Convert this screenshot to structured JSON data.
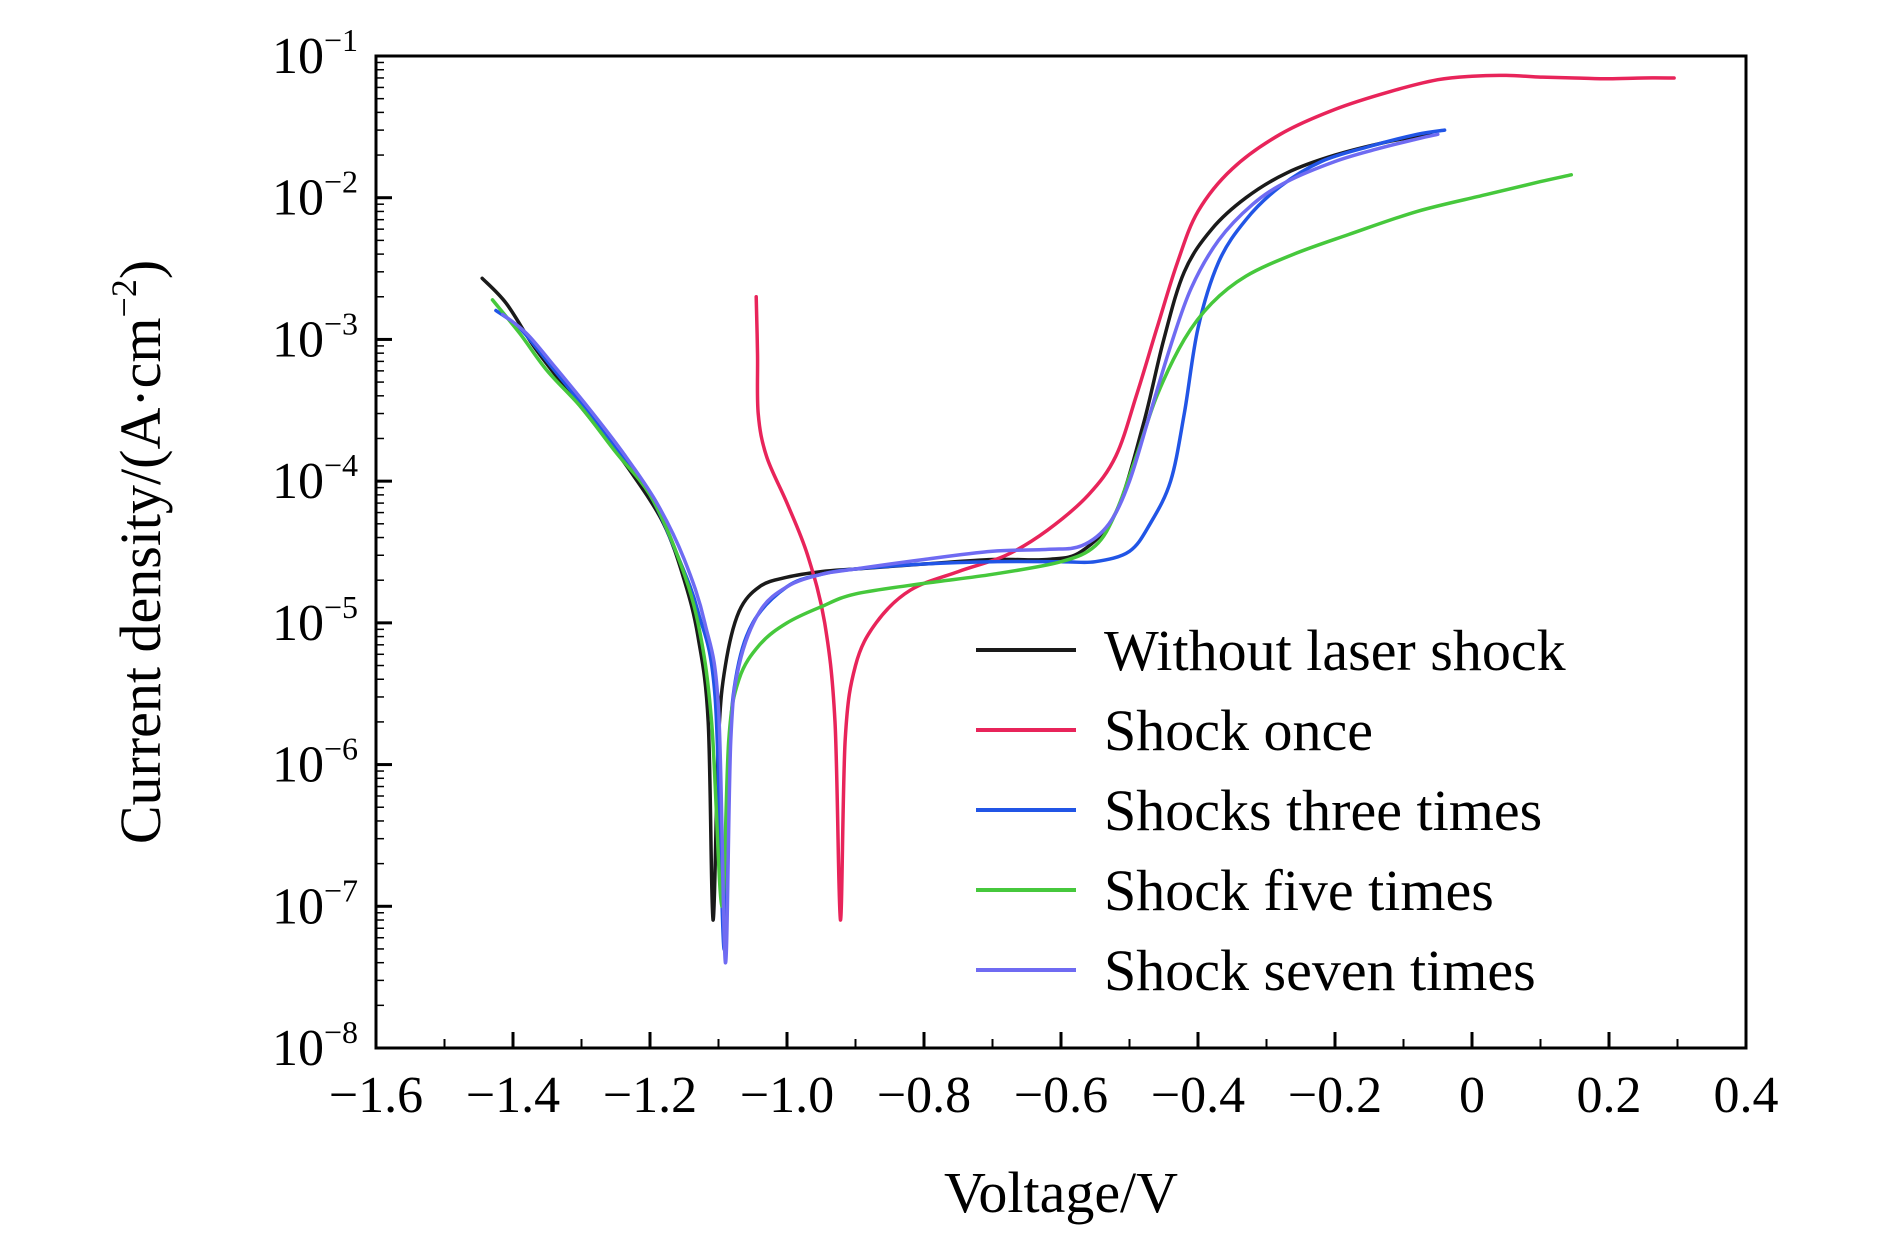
{
  "chart_data": {
    "type": "line",
    "title": "",
    "xlabel": "Voltage/V",
    "ylabel": {
      "prefix": "Current density/(A·cm",
      "exponent": "−2",
      "suffix": ")"
    },
    "xlim": [
      -1.6,
      0.4
    ],
    "ylim": [
      1e-08,
      0.1
    ],
    "yscale": "log",
    "grid": false,
    "legend_position": "bottom-right",
    "x_ticks": [
      {
        "value": -1.6,
        "label": "−1.6"
      },
      {
        "value": -1.4,
        "label": "−1.4"
      },
      {
        "value": -1.2,
        "label": "−1.2"
      },
      {
        "value": -1.0,
        "label": "−1.0"
      },
      {
        "value": -0.8,
        "label": "−0.8"
      },
      {
        "value": -0.6,
        "label": "−0.6"
      },
      {
        "value": -0.4,
        "label": "−0.4"
      },
      {
        "value": -0.2,
        "label": "−0.2"
      },
      {
        "value": 0,
        "label": "0"
      },
      {
        "value": 0.2,
        "label": "0.2"
      },
      {
        "value": 0.4,
        "label": "0.4"
      }
    ],
    "y_ticks": [
      {
        "value": 0.1,
        "base": "10",
        "exp": "−1"
      },
      {
        "value": 0.01,
        "base": "10",
        "exp": "−2"
      },
      {
        "value": 0.001,
        "base": "10",
        "exp": "−3"
      },
      {
        "value": 0.0001,
        "base": "10",
        "exp": "−4"
      },
      {
        "value": 1e-05,
        "base": "10",
        "exp": "−5"
      },
      {
        "value": 1e-06,
        "base": "10",
        "exp": "−6"
      },
      {
        "value": 1e-07,
        "base": "10",
        "exp": "−7"
      },
      {
        "value": 1e-08,
        "base": "10",
        "exp": "−8"
      }
    ],
    "series": [
      {
        "name": "Without laser shock",
        "color": "#1a1a1a",
        "points": [
          [
            -1.445,
            0.0027
          ],
          [
            -1.41,
            0.0018
          ],
          [
            -1.37,
            0.0009
          ],
          [
            -1.33,
            0.0005
          ],
          [
            -1.28,
            0.00025
          ],
          [
            -1.23,
            0.00012
          ],
          [
            -1.18,
            5e-05
          ],
          [
            -1.15,
            2e-05
          ],
          [
            -1.13,
            8e-06
          ],
          [
            -1.115,
            2e-06
          ],
          [
            -1.108,
            8e-08
          ],
          [
            -1.1,
            1.5e-06
          ],
          [
            -1.09,
            5e-06
          ],
          [
            -1.07,
            1.2e-05
          ],
          [
            -1.04,
            1.8e-05
          ],
          [
            -1.0,
            2.1e-05
          ],
          [
            -0.95,
            2.3e-05
          ],
          [
            -0.9,
            2.4e-05
          ],
          [
            -0.8,
            2.6e-05
          ],
          [
            -0.7,
            2.8e-05
          ],
          [
            -0.62,
            2.8e-05
          ],
          [
            -0.57,
            3.2e-05
          ],
          [
            -0.52,
            6e-05
          ],
          [
            -0.48,
            0.00025
          ],
          [
            -0.45,
            0.001
          ],
          [
            -0.42,
            0.003
          ],
          [
            -0.38,
            0.006
          ],
          [
            -0.33,
            0.01
          ],
          [
            -0.27,
            0.015
          ],
          [
            -0.2,
            0.02
          ],
          [
            -0.12,
            0.025
          ],
          [
            -0.06,
            0.028
          ]
        ]
      },
      {
        "name": "Shock once",
        "color": "#e8245a",
        "points": [
          [
            -1.045,
            0.002
          ],
          [
            -1.043,
            0.0008
          ],
          [
            -1.042,
            0.0003
          ],
          [
            -1.03,
            0.00015
          ],
          [
            -1.0,
            7e-05
          ],
          [
            -0.97,
            3e-05
          ],
          [
            -0.945,
            1e-05
          ],
          [
            -0.93,
            2e-06
          ],
          [
            -0.922,
            8e-08
          ],
          [
            -0.915,
            1.5e-06
          ],
          [
            -0.9,
            5e-06
          ],
          [
            -0.87,
            1e-05
          ],
          [
            -0.82,
            1.7e-05
          ],
          [
            -0.75,
            2.3e-05
          ],
          [
            -0.68,
            3e-05
          ],
          [
            -0.62,
            4.5e-05
          ],
          [
            -0.56,
            8e-05
          ],
          [
            -0.52,
            0.00015
          ],
          [
            -0.49,
            0.0004
          ],
          [
            -0.46,
            0.0012
          ],
          [
            -0.43,
            0.0035
          ],
          [
            -0.4,
            0.008
          ],
          [
            -0.35,
            0.016
          ],
          [
            -0.28,
            0.028
          ],
          [
            -0.2,
            0.042
          ],
          [
            -0.12,
            0.056
          ],
          [
            -0.05,
            0.068
          ],
          [
            0.0,
            0.072
          ],
          [
            0.05,
            0.073
          ],
          [
            0.1,
            0.071
          ],
          [
            0.15,
            0.07
          ],
          [
            0.2,
            0.069
          ],
          [
            0.25,
            0.07
          ],
          [
            0.295,
            0.07
          ]
        ]
      },
      {
        "name": "Shocks three times",
        "color": "#2155e6",
        "points": [
          [
            -1.425,
            0.0016
          ],
          [
            -1.39,
            0.0012
          ],
          [
            -1.35,
            0.0007
          ],
          [
            -1.3,
            0.00035
          ],
          [
            -1.25,
            0.00017
          ],
          [
            -1.2,
            8e-05
          ],
          [
            -1.16,
            3e-05
          ],
          [
            -1.13,
            1.2e-05
          ],
          [
            -1.105,
            3e-06
          ],
          [
            -1.092,
            5e-08
          ],
          [
            -1.085,
            1e-06
          ],
          [
            -1.075,
            4e-06
          ],
          [
            -1.05,
            1e-05
          ],
          [
            -1.0,
            1.8e-05
          ],
          [
            -0.95,
            2.2e-05
          ],
          [
            -0.9,
            2.4e-05
          ],
          [
            -0.8,
            2.6e-05
          ],
          [
            -0.7,
            2.7e-05
          ],
          [
            -0.6,
            2.7e-05
          ],
          [
            -0.55,
            2.7e-05
          ],
          [
            -0.5,
            3.2e-05
          ],
          [
            -0.47,
            5e-05
          ],
          [
            -0.44,
            0.0001
          ],
          [
            -0.42,
            0.0003
          ],
          [
            -0.4,
            0.0012
          ],
          [
            -0.37,
            0.0035
          ],
          [
            -0.33,
            0.007
          ],
          [
            -0.28,
            0.012
          ],
          [
            -0.22,
            0.018
          ],
          [
            -0.15,
            0.023
          ],
          [
            -0.08,
            0.028
          ],
          [
            -0.04,
            0.03
          ]
        ]
      },
      {
        "name": "Shock five times",
        "color": "#46c83c",
        "points": [
          [
            -1.43,
            0.0019
          ],
          [
            -1.39,
            0.0011
          ],
          [
            -1.35,
            0.0006
          ],
          [
            -1.3,
            0.00033
          ],
          [
            -1.25,
            0.00016
          ],
          [
            -1.2,
            8e-05
          ],
          [
            -1.16,
            3e-05
          ],
          [
            -1.13,
            1e-05
          ],
          [
            -1.11,
            2e-06
          ],
          [
            -1.095,
            1e-07
          ],
          [
            -1.085,
            1.5e-06
          ],
          [
            -1.07,
            4e-06
          ],
          [
            -1.04,
            7e-06
          ],
          [
            -1.0,
            1e-05
          ],
          [
            -0.95,
            1.3e-05
          ],
          [
            -0.9,
            1.6e-05
          ],
          [
            -0.8,
            1.9e-05
          ],
          [
            -0.7,
            2.2e-05
          ],
          [
            -0.6,
            2.7e-05
          ],
          [
            -0.55,
            3.5e-05
          ],
          [
            -0.52,
            6e-05
          ],
          [
            -0.49,
            0.00015
          ],
          [
            -0.46,
            0.0004
          ],
          [
            -0.42,
            0.001
          ],
          [
            -0.38,
            0.0018
          ],
          [
            -0.33,
            0.0028
          ],
          [
            -0.26,
            0.004
          ],
          [
            -0.18,
            0.0055
          ],
          [
            -0.08,
            0.008
          ],
          [
            0.02,
            0.0105
          ],
          [
            0.1,
            0.013
          ],
          [
            0.145,
            0.0145
          ]
        ]
      },
      {
        "name": "Shock seven times",
        "color": "#6f6bf2",
        "points": [
          [
            -1.415,
            0.0015
          ],
          [
            -1.38,
            0.0011
          ],
          [
            -1.34,
            0.00065
          ],
          [
            -1.29,
            0.00033
          ],
          [
            -1.24,
            0.00016
          ],
          [
            -1.19,
            7e-05
          ],
          [
            -1.15,
            2.8e-05
          ],
          [
            -1.12,
            1e-05
          ],
          [
            -1.1,
            2.5e-06
          ],
          [
            -1.09,
            4e-08
          ],
          [
            -1.082,
            1.5e-06
          ],
          [
            -1.07,
            5e-06
          ],
          [
            -1.04,
            1.2e-05
          ],
          [
            -1.0,
            1.8e-05
          ],
          [
            -0.95,
            2.2e-05
          ],
          [
            -0.9,
            2.4e-05
          ],
          [
            -0.8,
            2.8e-05
          ],
          [
            -0.7,
            3.2e-05
          ],
          [
            -0.62,
            3.3e-05
          ],
          [
            -0.57,
            3.5e-05
          ],
          [
            -0.53,
            5e-05
          ],
          [
            -0.5,
            0.0001
          ],
          [
            -0.47,
            0.0003
          ],
          [
            -0.44,
            0.0009
          ],
          [
            -0.41,
            0.0023
          ],
          [
            -0.37,
            0.005
          ],
          [
            -0.32,
            0.009
          ],
          [
            -0.27,
            0.013
          ],
          [
            -0.2,
            0.018
          ],
          [
            -0.14,
            0.022
          ],
          [
            -0.08,
            0.026
          ],
          [
            -0.05,
            0.028
          ]
        ]
      }
    ]
  }
}
